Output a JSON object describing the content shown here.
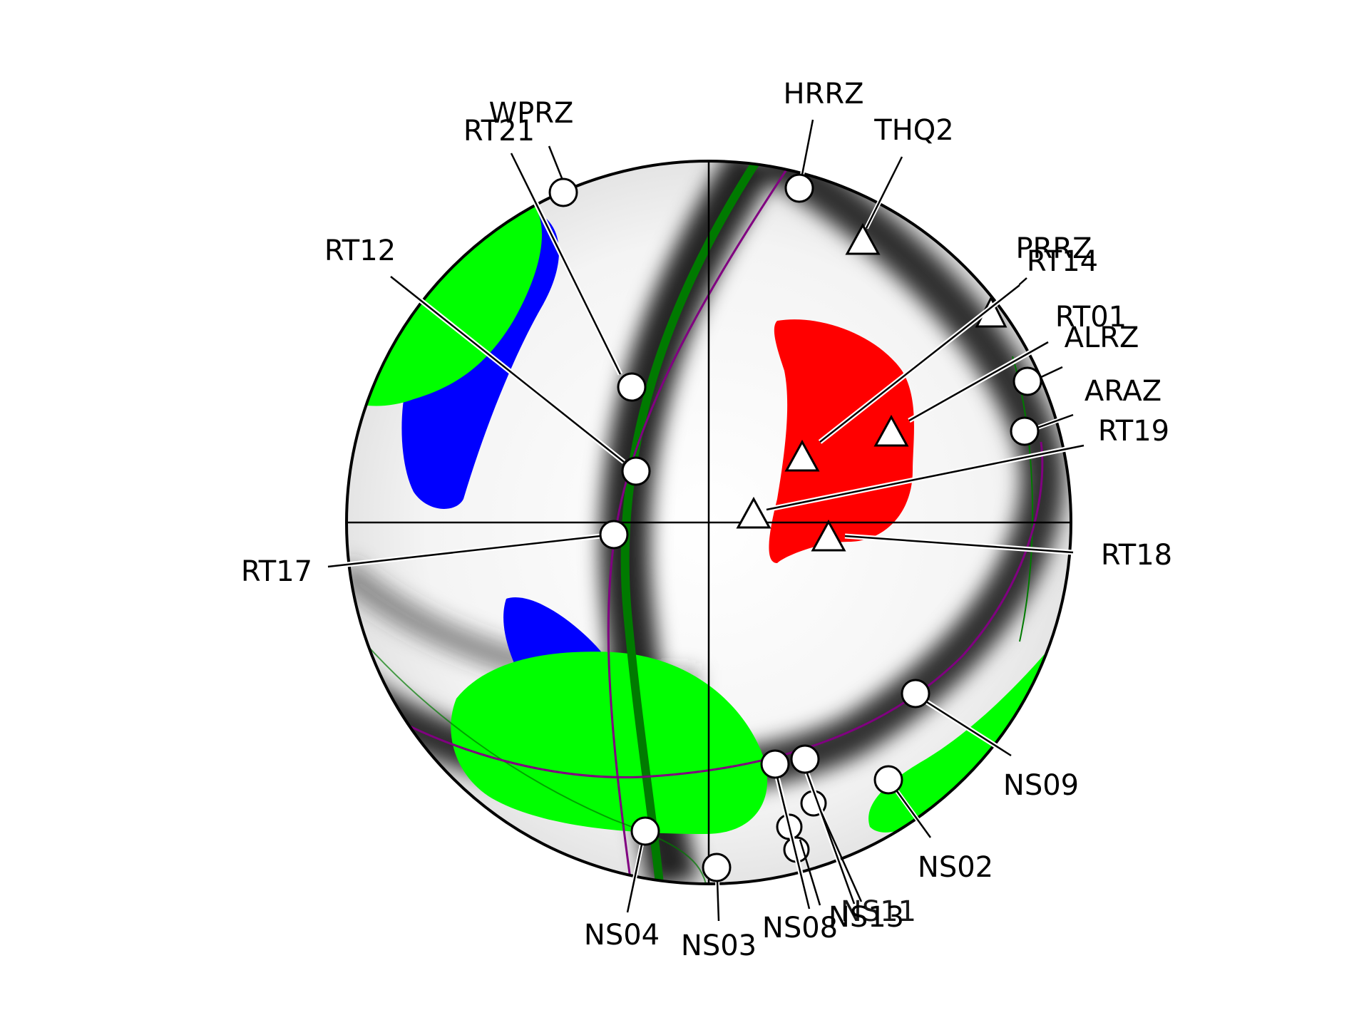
{
  "colors": {
    "compressional": "#ff0000",
    "tensional_a": "#0000ff",
    "tensional_b": "#00ff00",
    "nodal_green": "#007a00",
    "nodal_purple": "#800080"
  },
  "stations": [
    {
      "id": "wprz",
      "label": "WPRZ",
      "symbol": "circle"
    },
    {
      "id": "rt21",
      "label": "RT21",
      "symbol": "circle"
    },
    {
      "id": "hrrz",
      "label": "HRRZ",
      "symbol": "circle"
    },
    {
      "id": "thq2",
      "label": "THQ2",
      "symbol": "triangle"
    },
    {
      "id": "prrz",
      "label": "PRRZ",
      "symbol": "triangle"
    },
    {
      "id": "rt14",
      "label": "RT14",
      "symbol": "triangle"
    },
    {
      "id": "rt12",
      "label": "RT12",
      "symbol": "circle"
    },
    {
      "id": "rt01",
      "label": "RT01",
      "symbol": "triangle"
    },
    {
      "id": "alrz",
      "label": "ALRZ",
      "symbol": "circle"
    },
    {
      "id": "araz",
      "label": "ARAZ",
      "symbol": "circle"
    },
    {
      "id": "rt19",
      "label": "RT19",
      "symbol": "triangle"
    },
    {
      "id": "rt17",
      "label": "RT17",
      "symbol": "circle"
    },
    {
      "id": "rt18",
      "label": "RT18",
      "symbol": "triangle"
    },
    {
      "id": "ns09",
      "label": "NS09",
      "symbol": "circle"
    },
    {
      "id": "ns02",
      "label": "NS02",
      "symbol": "circle"
    },
    {
      "id": "ns04",
      "label": "NS04",
      "symbol": "circle"
    },
    {
      "id": "ns03",
      "label": "NS03",
      "symbol": "circle"
    },
    {
      "id": "ns08",
      "label": "NS08",
      "symbol": "circle"
    },
    {
      "id": "ns13",
      "label": "NS13",
      "symbol": "circle"
    },
    {
      "id": "ns11",
      "label": "NS11",
      "symbol": "circle"
    }
  ]
}
